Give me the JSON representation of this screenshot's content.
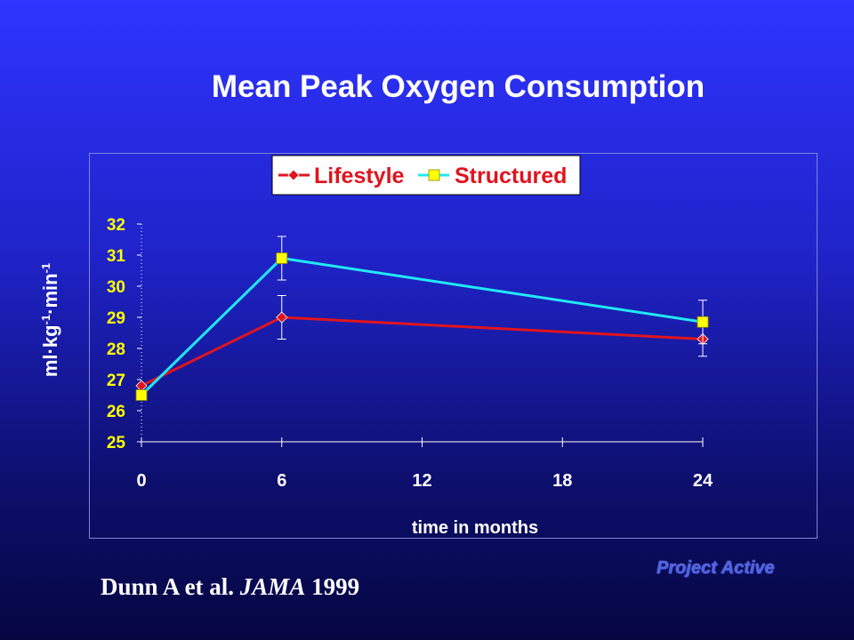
{
  "slide": {
    "title": "Mean Peak Oxygen Consumption",
    "citation_prefix": "Dunn A et al.",
    "citation_journal": "JAMA",
    "citation_year": "1999",
    "brand_prefix": "Project",
    "brand_emph": "Active"
  },
  "ylabel": {
    "base1": "ml·kg",
    "exp1": "-1",
    "base2": "·min",
    "exp2": "-1"
  },
  "colors": {
    "lifestyle": "#e0141e",
    "structured": "#22e8f5",
    "marker_structured": "#ffff00",
    "tick_text": "#ffff00",
    "axis": "#ffffff"
  },
  "chart_data": {
    "type": "line",
    "title": "Mean Peak Oxygen Consumption",
    "xlabel": "time in months",
    "ylabel": "ml·kg-1·min-1",
    "x": [
      0,
      6,
      24
    ],
    "xticks": [
      0,
      6,
      12,
      18,
      24
    ],
    "yticks": [
      25,
      26,
      27,
      28,
      29,
      30,
      31,
      32
    ],
    "xlim": [
      0,
      24
    ],
    "ylim": [
      25,
      32
    ],
    "grid": false,
    "legend_position": "top",
    "series": [
      {
        "name": "Lifestyle",
        "values": [
          26.8,
          29.0,
          28.3
        ],
        "error": [
          null,
          0.7,
          0.55
        ],
        "marker": "diamond",
        "color": "#e0141e"
      },
      {
        "name": "Structured",
        "values": [
          26.5,
          30.9,
          28.85
        ],
        "error": [
          null,
          0.7,
          0.7
        ],
        "marker": "square",
        "color": "#22e8f5"
      }
    ]
  }
}
